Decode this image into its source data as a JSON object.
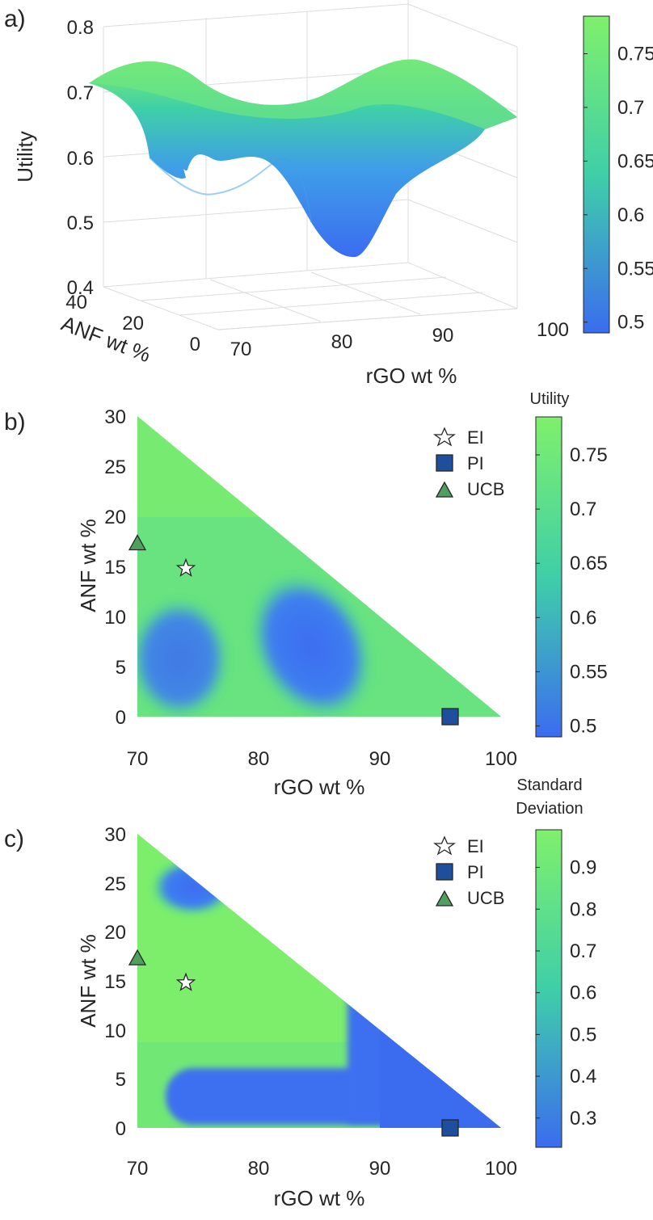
{
  "colors": {
    "low": "#3b6cf0",
    "high": "#7ff06c",
    "mid": "#3fcfa8",
    "text": "#262626",
    "pi_marker": "#1f4f9c",
    "ucb_marker": "#4f9f5f",
    "ei_marker": "#ffffff"
  },
  "chart_data": [
    {
      "panel": "a)",
      "type": "surface",
      "z_label": "Utility",
      "y_label": "ANF wt %",
      "x_label": "rGO wt %",
      "z_ticks": [
        "0.4",
        "0.5",
        "0.6",
        "0.7",
        "0.8"
      ],
      "y_ticks": [
        "40",
        "20",
        "0"
      ],
      "x_ticks": [
        "70",
        "80",
        "90",
        "100"
      ],
      "zlim": [
        0.4,
        0.8
      ],
      "x_range": [
        70,
        100
      ],
      "y_range": [
        0,
        40
      ],
      "surface_min": 0.49,
      "surface_max": 0.78,
      "colorbar": {
        "title": "",
        "ticks": [
          "0.75",
          "0.7",
          "0.65",
          "0.6",
          "0.55",
          "0.5"
        ],
        "range": [
          0.49,
          0.785
        ]
      }
    },
    {
      "panel": "b)",
      "type": "heatmap",
      "x_label": "rGO wt %",
      "y_label": "ANF wt %",
      "x_ticks": [
        "70",
        "80",
        "90",
        "100"
      ],
      "y_ticks": [
        "30",
        "25",
        "20",
        "15",
        "10",
        "5",
        "0"
      ],
      "xlim": [
        70,
        100
      ],
      "ylim": [
        0,
        30
      ],
      "domain": "rGO + ANF <= 100",
      "low_regions": [
        {
          "center": [
            84.5,
            6.5
          ],
          "radius_x": 3.2,
          "radius_y": 5.8,
          "value": 0.49
        },
        {
          "center": [
            73.5,
            5
          ],
          "radius_x": 3.2,
          "radius_y": 4.5,
          "value": 0.53
        }
      ],
      "background_value": 0.76,
      "legend": [
        {
          "label": "EI",
          "marker": "star"
        },
        {
          "label": "PI",
          "marker": "square"
        },
        {
          "label": "UCB",
          "marker": "triangle"
        }
      ],
      "points": [
        {
          "series": "EI",
          "x": 74,
          "y": 14.8
        },
        {
          "series": "PI",
          "x": 95.8,
          "y": 0
        },
        {
          "series": "UCB",
          "x": 70,
          "y": 17.3
        }
      ],
      "colorbar": {
        "title": "Utility",
        "ticks": [
          "0.75",
          "0.7",
          "0.65",
          "0.6",
          "0.55",
          "0.5"
        ],
        "range": [
          0.49,
          0.785
        ]
      }
    },
    {
      "panel": "c)",
      "type": "heatmap",
      "x_label": "rGO wt %",
      "y_label": "ANF wt %",
      "x_ticks": [
        "70",
        "80",
        "90",
        "100"
      ],
      "y_ticks": [
        "30",
        "25",
        "20",
        "15",
        "10",
        "5",
        "0"
      ],
      "xlim": [
        70,
        100
      ],
      "ylim": [
        0,
        30
      ],
      "domain": "rGO + ANF <= 100",
      "low_regions": [
        {
          "description": "upper left lobe",
          "center": [
            75.5,
            25.5
          ],
          "value": 0.3
        },
        {
          "description": "band y 1-7",
          "x_range": [
            73,
            97
          ],
          "y_range": [
            1,
            7
          ],
          "value": 0.3
        },
        {
          "description": "right corner x > 87",
          "x_range": [
            87,
            100
          ],
          "y_range": [
            0,
            13
          ],
          "value": 0.3
        }
      ],
      "background_value": 0.93,
      "legend": [
        {
          "label": "EI",
          "marker": "star"
        },
        {
          "label": "PI",
          "marker": "square"
        },
        {
          "label": "UCB",
          "marker": "triangle"
        }
      ],
      "points": [
        {
          "series": "EI",
          "x": 74,
          "y": 14.8
        },
        {
          "series": "PI",
          "x": 95.8,
          "y": 0
        },
        {
          "series": "UCB",
          "x": 70,
          "y": 17.3
        }
      ],
      "colorbar": {
        "title_line1": "Standard",
        "title_line2": "Deviation",
        "ticks": [
          "0.9",
          "0.8",
          "0.7",
          "0.6",
          "0.5",
          "0.4",
          "0.3"
        ],
        "range": [
          0.23,
          0.99
        ]
      }
    }
  ]
}
